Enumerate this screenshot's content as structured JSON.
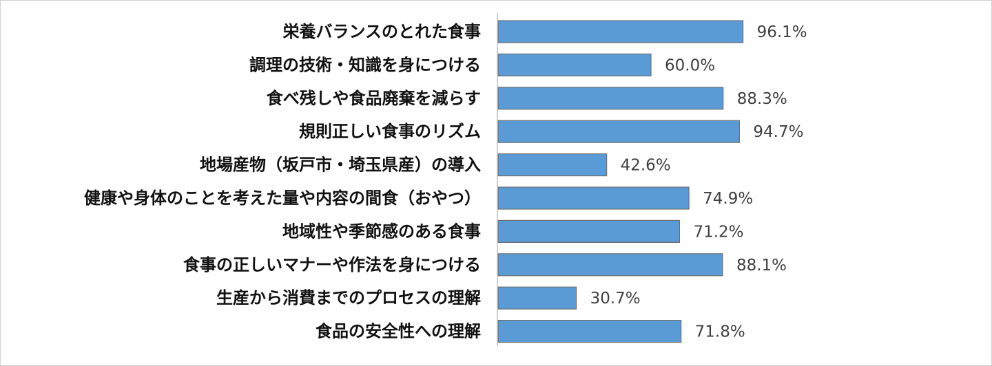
{
  "chart_data": {
    "type": "bar",
    "orientation": "horizontal",
    "categories": [
      "栄養バランスのとれた食事",
      "調理の技術・知識を身につける",
      "食べ残しや食品廃棄を減らす",
      "規則正しい食事のリズム",
      "地場産物（坂戸市・埼玉県産）の導入",
      "健康や身体のことを考えた量や内容の間食（おやつ）",
      "地域性や季節感のある食事",
      "食事の正しいマナーや作法を身につける",
      "生産から消費までのプロセスの理解",
      "食品の安全性への理解"
    ],
    "values": [
      96.1,
      60.0,
      88.3,
      94.7,
      42.6,
      74.9,
      71.2,
      88.1,
      30.7,
      71.8
    ],
    "value_labels": [
      "96.1%",
      "60.0%",
      "88.3%",
      "94.7%",
      "42.6%",
      "74.9%",
      "71.2%",
      "88.1%",
      "30.7%",
      "71.8%"
    ],
    "xlim": [
      0,
      100
    ],
    "grid": false,
    "legend": "none",
    "bar_color": "#5b9bd5",
    "bar_border_color": "#6f6f6f",
    "axis_color": "#bfbfbf"
  }
}
